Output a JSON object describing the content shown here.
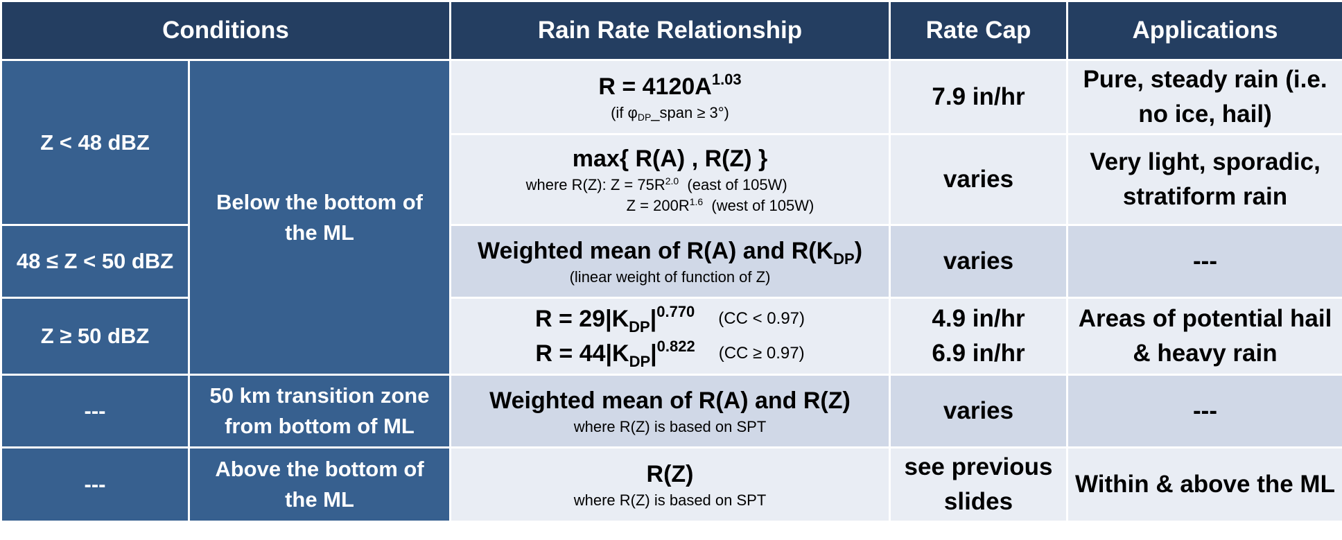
{
  "headers": {
    "conditions": "Conditions",
    "relationship": "Rain Rate Relationship",
    "cap": "Rate Cap",
    "applications": "Applications"
  },
  "rows": {
    "r1": {
      "condition": "Z < 48 dBZ",
      "location": "Below the bottom of the ML",
      "eq_base": "R = 4120A",
      "eq_exp": "1.03",
      "note_pre": "(if φ",
      "note_sub": "DP",
      "note_post": "_span ≥ 3°)",
      "cap": "7.9 in/hr",
      "app": "Pure, steady rain (i.e. no ice, hail)"
    },
    "r2": {
      "eq": "max{ R(A) , R(Z) }",
      "line1_pre": "where R(Z): Z = 75R",
      "line1_exp": "2.0",
      "line1_post": "  (east of 105W)",
      "line2_pre": "Z = 200R",
      "line2_exp": "1.6",
      "line2_post": "  (west of 105W)",
      "cap": "varies",
      "app": "Very light, sporadic, stratiform rain"
    },
    "r3": {
      "condition": "48 ≤ Z < 50 dBZ",
      "eq_pre": "Weighted mean of R(A) and R(K",
      "eq_sub": "DP",
      "eq_post": ")",
      "note": "(linear weight of function of Z)",
      "cap": "varies",
      "app": "---"
    },
    "r4": {
      "condition": "Z ≥ 50 dBZ",
      "eq1_pre": "R = 29|K",
      "eq1_sub": "DP",
      "eq1_mid": "|",
      "eq1_exp": "0.770",
      "eq1_cc": "(CC < 0.97)",
      "eq2_pre": "R = 44|K",
      "eq2_sub": "DP",
      "eq2_mid": "|",
      "eq2_exp": "0.822",
      "eq2_cc": "(CC ≥ 0.97)",
      "cap1": "4.9 in/hr",
      "cap2": "6.9 in/hr",
      "app": "Areas of potential hail & heavy rain"
    },
    "r5": {
      "condition": "---",
      "location": "50 km transition zone from bottom of ML",
      "eq": "Weighted mean of R(A) and R(Z)",
      "note": "where R(Z) is based on SPT",
      "cap": "varies",
      "app": "---"
    },
    "r6": {
      "condition": "---",
      "location": "Above the bottom of the ML",
      "eq": "R(Z)",
      "note": "where R(Z) is based on SPT",
      "cap": "see previous slides",
      "app": "Within & above the ML"
    }
  },
  "colors": {
    "header_bg": "#243e61",
    "condition_bg": "#37608f",
    "row_light": "#e9edf4",
    "row_mid": "#d0d8e7"
  }
}
